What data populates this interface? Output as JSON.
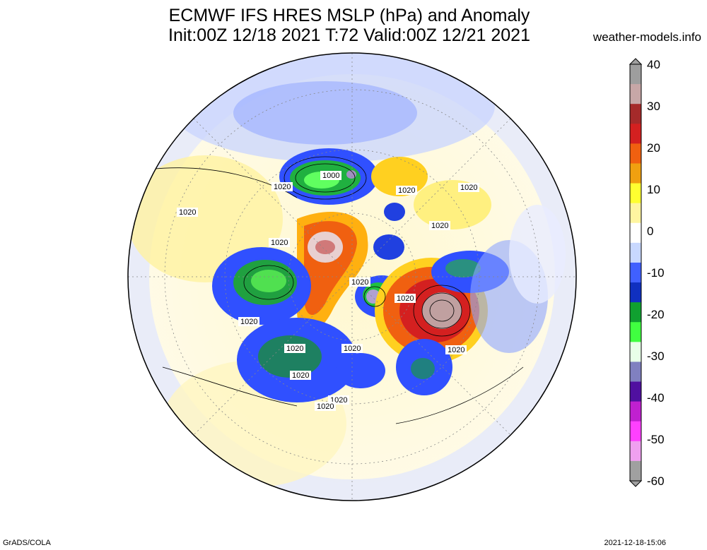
{
  "title_line1": "ECMWF IFS HRES MSLP (hPa) and Anomaly",
  "title_line2": "Init:00Z 12/18 2021 T:72 Valid:00Z 12/21 2021",
  "site": "weather-models.info",
  "credit": "GrADS/COLA",
  "timestamp": "2021-12-18-15:06",
  "colorbar": {
    "tick_labels": [
      "40",
      "30",
      "20",
      "10",
      "0",
      "-10",
      "-20",
      "-30",
      "-40",
      "-50",
      "-60"
    ],
    "stops": [
      "#9e9e9e",
      "#c7a7a7",
      "#a52a2a",
      "#d42020",
      "#f06010",
      "#f0a010",
      "#ffff30",
      "#fff5a0",
      "#ffffff",
      "#c8d8ff",
      "#4060ff",
      "#1030c0",
      "#10a030",
      "#40ff40",
      "#e8ffe8",
      "#8080c0",
      "#5010a0",
      "#c020d0",
      "#ff40ff",
      "#f0a0f0",
      "#a0a0a0"
    ]
  },
  "map": {
    "contour_labels": [
      "1000",
      "1020",
      "1020",
      "1020",
      "1020",
      "1020",
      "1020",
      "1020",
      "1020",
      "1020",
      "1020",
      "1020",
      "1020",
      "1020",
      "1020",
      "1020"
    ]
  }
}
